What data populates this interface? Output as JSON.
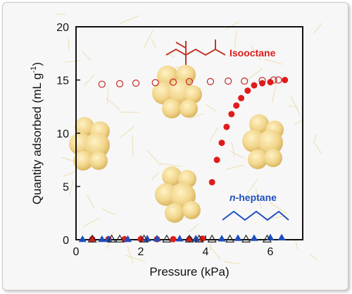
{
  "chart_data": {
    "type": "scatter",
    "xlabel": "Pressure (kPa)",
    "ylabel_main": "Quantity adsorbed  (mL g",
    "ylabel_sup": "-1",
    "ylabel_end": ")",
    "xlim": [
      0,
      7
    ],
    "ylim": [
      0,
      20
    ],
    "x_ticks": [
      0,
      2,
      4,
      6
    ],
    "y_ticks": [
      0,
      5,
      10,
      15,
      20
    ],
    "annotations": {
      "isooctane": "Isooctane",
      "heptane_prefix": "n",
      "heptane_rest": "-heptane"
    },
    "colors": {
      "isooctane": "#e01b1b",
      "heptane": "#1f4fbf",
      "open_circle": "#c62828",
      "open_triangle": "#222222"
    },
    "series": [
      {
        "marker": "filled-circle",
        "color": "#e01b1b",
        "points": [
          [
            0.5,
            0.05
          ],
          [
            1.0,
            0.05
          ],
          [
            1.5,
            0.05
          ],
          [
            2.0,
            0.05
          ],
          [
            2.5,
            0.05
          ],
          [
            3.0,
            0.05
          ],
          [
            3.5,
            0.05
          ],
          [
            3.9,
            0.1
          ],
          [
            4.2,
            5.4
          ],
          [
            4.35,
            7.5
          ],
          [
            4.5,
            9.1
          ],
          [
            4.65,
            10.6
          ],
          [
            4.8,
            11.8
          ],
          [
            4.95,
            12.6
          ],
          [
            5.1,
            13.3
          ],
          [
            5.3,
            14.0
          ],
          [
            5.5,
            14.5
          ],
          [
            5.75,
            14.7
          ],
          [
            6.0,
            14.8
          ],
          [
            6.45,
            15.0
          ]
        ]
      },
      {
        "marker": "open-circle",
        "color": "#c62828",
        "points": [
          [
            0.8,
            14.6
          ],
          [
            1.35,
            14.65
          ],
          [
            1.85,
            14.7
          ],
          [
            2.45,
            14.75
          ],
          [
            3.0,
            14.8
          ],
          [
            3.5,
            14.85
          ],
          [
            4.15,
            14.85
          ],
          [
            4.7,
            14.9
          ],
          [
            5.2,
            14.9
          ],
          [
            5.75,
            14.95
          ],
          [
            6.1,
            15.0
          ],
          [
            6.25,
            15.0
          ]
        ]
      },
      {
        "marker": "filled-triangle",
        "color": "#1f4fbf",
        "points": [
          [
            0.2,
            0.05
          ],
          [
            0.8,
            0.05
          ],
          [
            1.0,
            0.05
          ],
          [
            1.6,
            0.05
          ],
          [
            2.2,
            0.1
          ],
          [
            2.5,
            0.1
          ],
          [
            3.2,
            0.1
          ],
          [
            3.7,
            0.1
          ],
          [
            4.5,
            0.1
          ],
          [
            5.0,
            0.15
          ],
          [
            5.5,
            0.15
          ],
          [
            6.0,
            0.2
          ],
          [
            6.35,
            0.2
          ]
        ]
      },
      {
        "marker": "open-triangle",
        "color": "#222222",
        "points": [
          [
            0.5,
            0.05
          ],
          [
            1.1,
            0.05
          ],
          [
            1.35,
            0.05
          ],
          [
            2.1,
            0.05
          ],
          [
            2.8,
            0.05
          ],
          [
            3.5,
            0.05
          ],
          [
            3.8,
            0.05
          ],
          [
            4.2,
            0.05
          ],
          [
            4.75,
            0.05
          ],
          [
            5.25,
            0.05
          ],
          [
            5.9,
            0.05
          ]
        ]
      }
    ]
  }
}
